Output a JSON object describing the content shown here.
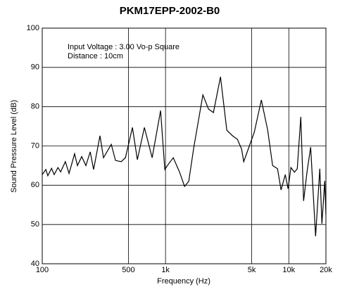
{
  "chart_data": {
    "type": "line",
    "title": "PKM17EPP-2002-B0",
    "xlabel": "Frequency (Hz)",
    "ylabel": "Sound Pressure Level (dB)",
    "annotations": [
      "Input Voltage : 3.00 Vo-p Square",
      "Distance : 10cm"
    ],
    "xscale": "log",
    "grid": true,
    "xlim": [
      100,
      20000
    ],
    "ylim": [
      40,
      100
    ],
    "xticks": [
      100,
      500,
      {
        "value": 1000,
        "label": "1k"
      },
      {
        "value": 5000,
        "label": "5k"
      },
      {
        "value": 10000,
        "label": "10k"
      },
      {
        "value": 20000,
        "label": "20k"
      }
    ],
    "yticks": [
      40,
      50,
      60,
      70,
      80,
      90,
      100
    ],
    "x": [
      100,
      107,
      111,
      119,
      125,
      134,
      141,
      154,
      165,
      183,
      193,
      209,
      226,
      245,
      261,
      294,
      314,
      363,
      393,
      437,
      473,
      539,
      591,
      674,
      779,
      912,
      987,
      1068,
      1156,
      1301,
      1427,
      1544,
      1693,
      2009,
      2232,
      2447,
      2791,
      3142,
      3491,
      3828,
      4141,
      4309,
      4786,
      5248,
      5987,
      6742,
      7390,
      8100,
      8650,
      9360,
      9870,
      10400,
      11110,
      11710,
      12510,
      13180,
      14080,
      15040,
      16490,
      17840,
      18560,
      19560,
      20000
    ],
    "series": [
      {
        "name": "SPL",
        "color": "#000000",
        "values": [
          62.7,
          64,
          62.4,
          64.3,
          62.7,
          64.5,
          63.4,
          66,
          63,
          68,
          65,
          67.3,
          65,
          68.5,
          64,
          72.6,
          67,
          70.4,
          66.3,
          66,
          67,
          74.7,
          66.5,
          74.7,
          67,
          79,
          64,
          65.6,
          67,
          63.3,
          59.7,
          61,
          69.5,
          83,
          79.4,
          78.5,
          87.6,
          74,
          72.6,
          71.7,
          69.2,
          66,
          70,
          73.5,
          81.7,
          74,
          65,
          64.2,
          58.8,
          62.7,
          59.1,
          64.5,
          63.3,
          64.2,
          77.4,
          56,
          63.6,
          69.7,
          47,
          64.2,
          50.2,
          61.1,
          52.5
        ]
      }
    ]
  }
}
